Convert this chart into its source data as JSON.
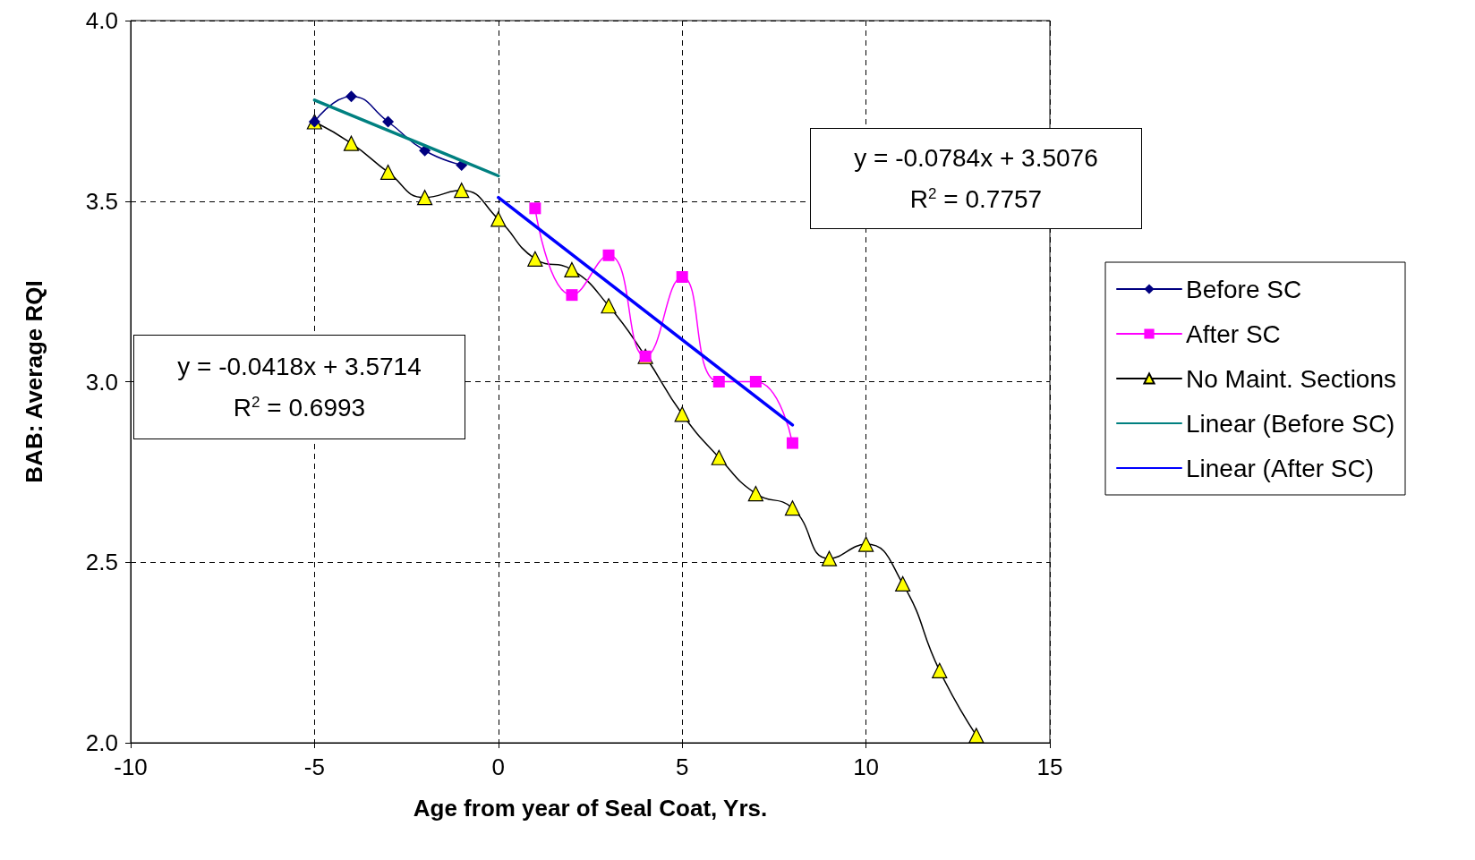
{
  "chart_data": {
    "type": "line",
    "xlabel": "Age from year of Seal Coat, Yrs.",
    "ylabel": "BAB: Average RQI",
    "xlim": [
      -10,
      15
    ],
    "xticks": [
      -10,
      -5,
      0,
      5,
      10,
      15
    ],
    "ylim": [
      2,
      4
    ],
    "yticks": [
      {
        "value": 2,
        "label": "2.0"
      },
      {
        "value": 2.5,
        "label": "2.5"
      },
      {
        "value": 3,
        "label": "3.0"
      },
      {
        "value": 3.5,
        "label": "3.5"
      },
      {
        "value": 4,
        "label": "4.0"
      }
    ],
    "grid": true,
    "legend": "right",
    "annotations": [
      "y = -0.0784x + 3.5076\nR$^{2}$ = 0.7757",
      "y = -0.0418x + 3.5714\nR$^{2}$ = 0.6993"
    ],
    "series": [
      {
        "name": "Before SC",
        "color": "#000080",
        "marker": "diamond",
        "x": [
          -5,
          -4,
          -3,
          -2,
          -1
        ],
        "values": [
          3.72,
          3.79,
          3.72,
          3.64,
          3.6
        ]
      },
      {
        "name": "After SC",
        "color": "#ff00ff",
        "marker": "square",
        "x": [
          1,
          2,
          3,
          4,
          5,
          6,
          7,
          8
        ],
        "values": [
          3.48,
          3.24,
          3.35,
          3.07,
          3.29,
          3.0,
          3.0,
          2.83
        ]
      },
      {
        "name": "No Maint. Sections",
        "color": "#000000",
        "marker": "triangle",
        "x": [
          -5,
          -4,
          -3,
          -2,
          -1,
          0,
          1,
          2,
          3,
          4,
          5,
          6,
          7,
          8,
          9,
          10,
          11,
          12,
          13
        ],
        "values": [
          3.72,
          3.66,
          3.58,
          3.51,
          3.53,
          3.45,
          3.34,
          3.31,
          3.21,
          3.07,
          2.91,
          2.79,
          2.69,
          2.65,
          2.51,
          2.55,
          2.44,
          2.2,
          2.02
        ]
      },
      {
        "name": "Linear (Before SC)",
        "color": "#008080",
        "marker": "none",
        "x": [
          -5,
          0
        ],
        "values": [
          3.78,
          3.57
        ]
      },
      {
        "name": "Linear (After SC)",
        "color": "#0000ff",
        "marker": "none",
        "x": [
          0,
          8
        ],
        "values": [
          3.51,
          2.88
        ]
      }
    ]
  }
}
